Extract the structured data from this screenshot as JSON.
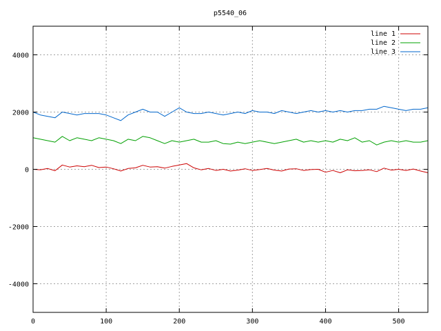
{
  "chart_data": {
    "type": "line",
    "title": "p5540_06",
    "xlabel": "",
    "ylabel": "",
    "xlim": [
      0,
      540
    ],
    "ylim": [
      -5000,
      5000
    ],
    "xticks": [
      0,
      100,
      200,
      300,
      400,
      500
    ],
    "yticks": [
      -4000,
      -2000,
      0,
      2000,
      4000
    ],
    "grid": true,
    "legend_position": "top-right",
    "x": [
      0,
      10,
      20,
      30,
      40,
      50,
      60,
      70,
      80,
      90,
      100,
      110,
      120,
      130,
      140,
      150,
      160,
      170,
      180,
      190,
      200,
      210,
      220,
      230,
      240,
      250,
      260,
      270,
      280,
      290,
      300,
      310,
      320,
      330,
      340,
      350,
      360,
      370,
      380,
      390,
      400,
      410,
      420,
      430,
      440,
      450,
      460,
      470,
      480,
      490,
      500,
      510,
      520,
      530,
      540
    ],
    "series": [
      {
        "name": "line 1",
        "color": "#cc0000",
        "values": [
          0,
          -20,
          30,
          -50,
          150,
          80,
          120,
          90,
          140,
          60,
          80,
          20,
          -60,
          30,
          50,
          140,
          80,
          90,
          40,
          100,
          150,
          200,
          50,
          -20,
          30,
          -40,
          0,
          -60,
          -30,
          20,
          -40,
          -10,
          30,
          -30,
          -60,
          10,
          20,
          -40,
          -10,
          0,
          -100,
          -40,
          -120,
          -20,
          -50,
          -40,
          -20,
          -80,
          40,
          -30,
          0,
          -40,
          10,
          -60,
          -120
        ]
      },
      {
        "name": "line 2",
        "color": "#00a000",
        "values": [
          1100,
          1050,
          1000,
          950,
          1150,
          1000,
          1100,
          1050,
          1000,
          1100,
          1050,
          1000,
          900,
          1050,
          1000,
          1150,
          1100,
          1000,
          900,
          1000,
          950,
          1000,
          1050,
          950,
          950,
          1000,
          900,
          880,
          950,
          900,
          950,
          1000,
          950,
          900,
          950,
          1000,
          1050,
          950,
          1000,
          950,
          1000,
          950,
          1050,
          1000,
          1100,
          950,
          1000,
          850,
          950,
          1000,
          950,
          1000,
          950,
          950,
          1000
        ]
      },
      {
        "name": "line 3",
        "color": "#0066cc",
        "values": [
          2000,
          1900,
          1850,
          1800,
          2000,
          1950,
          1900,
          1950,
          1950,
          1950,
          1900,
          1800,
          1700,
          1900,
          2000,
          2100,
          2000,
          2000,
          1850,
          2000,
          2150,
          2000,
          1950,
          1950,
          2000,
          1950,
          1900,
          1950,
          2000,
          1950,
          2050,
          2000,
          2000,
          1950,
          2050,
          2000,
          1950,
          2000,
          2050,
          2000,
          2050,
          2000,
          2050,
          2000,
          2050,
          2050,
          2100,
          2100,
          2200,
          2150,
          2100,
          2050,
          2100,
          2100,
          2150
        ]
      }
    ]
  }
}
